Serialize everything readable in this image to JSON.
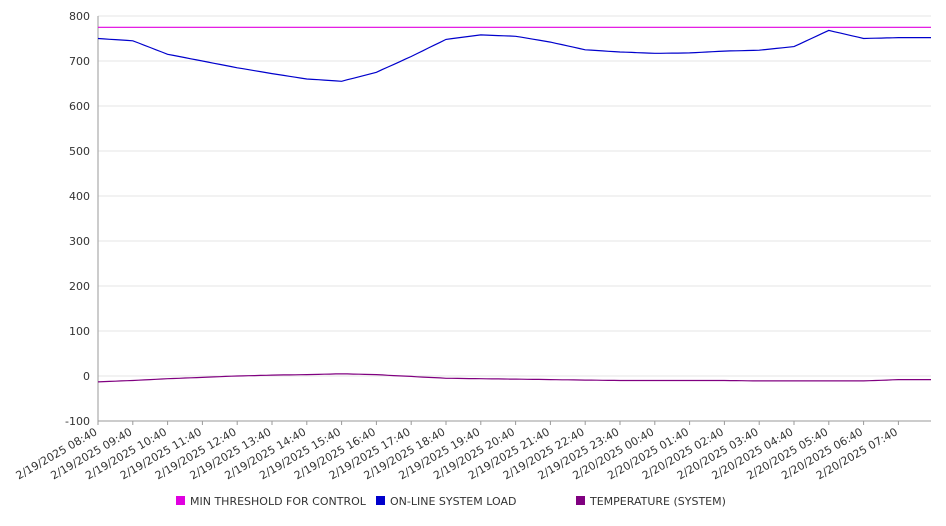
{
  "chart_data": {
    "type": "line",
    "title": "",
    "xlabel": "",
    "ylabel": "",
    "ylim": [
      -100,
      800
    ],
    "yticks": [
      800,
      700,
      600,
      500,
      400,
      300,
      200,
      100,
      0,
      -100
    ],
    "grid": "horizontal",
    "legend_position": "bottom",
    "categories": [
      "2/19/2025 08:40",
      "2/19/2025 09:40",
      "2/19/2025 10:40",
      "2/19/2025 11:40",
      "2/19/2025 12:40",
      "2/19/2025 13:40",
      "2/19/2025 14:40",
      "2/19/2025 15:40",
      "2/19/2025 16:40",
      "2/19/2025 17:40",
      "2/19/2025 18:40",
      "2/19/2025 19:40",
      "2/19/2025 20:40",
      "2/19/2025 21:40",
      "2/19/2025 22:40",
      "2/19/2025 23:40",
      "2/20/2025 00:40",
      "2/20/2025 01:40",
      "2/20/2025 02:40",
      "2/20/2025 03:40",
      "2/20/2025 04:40",
      "2/20/2025 05:40",
      "2/20/2025 06:40",
      "2/20/2025 07:40"
    ],
    "series": [
      {
        "name": "MIN THRESHOLD FOR CONTROL",
        "color": "#e000e0",
        "values": [
          775,
          775,
          775,
          775,
          775,
          775,
          775,
          775,
          775,
          775,
          775,
          775,
          775,
          775,
          775,
          775,
          775,
          775,
          775,
          775,
          775,
          775,
          775,
          775
        ]
      },
      {
        "name": "ON-LINE SYSTEM LOAD",
        "color": "#0000cc",
        "values": [
          750,
          745,
          715,
          700,
          685,
          672,
          660,
          655,
          675,
          710,
          748,
          758,
          755,
          742,
          725,
          720,
          717,
          718,
          722,
          724,
          732,
          768,
          750,
          752
        ]
      },
      {
        "name": "TEMPERATURE (SYSTEM)",
        "color": "#800080",
        "values": [
          -13,
          -10,
          -6,
          -3,
          0,
          2,
          3,
          5,
          3,
          -1,
          -5,
          -6,
          -7,
          -8,
          -9,
          -10,
          -10,
          -10,
          -10,
          -11,
          -11,
          -11,
          -11,
          -8
        ]
      }
    ]
  }
}
